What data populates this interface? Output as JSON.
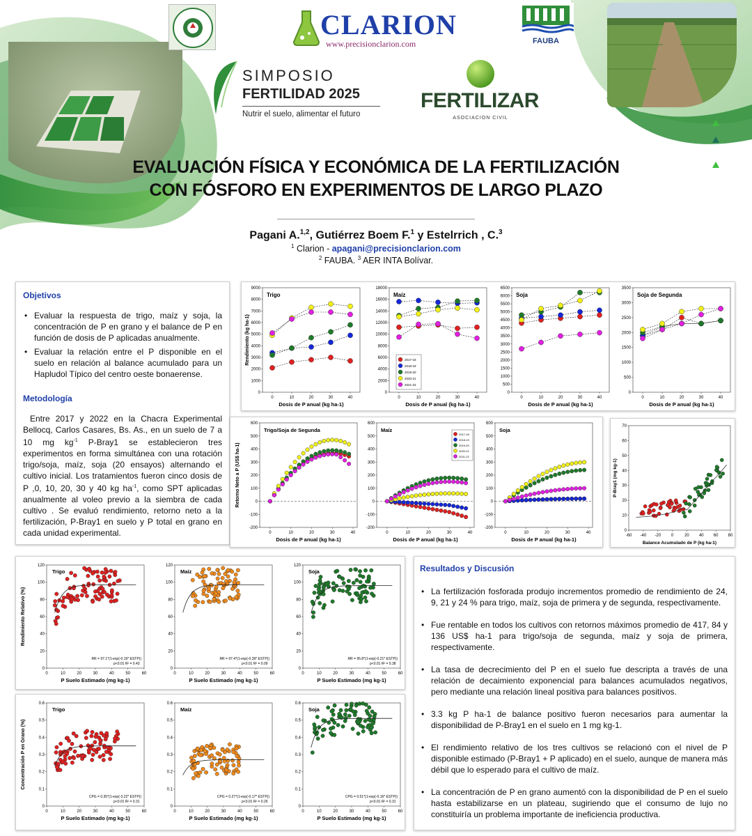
{
  "header": {
    "chacra_logo_text": "CHACRA EXPERIMENTAL BELLOCQ",
    "clarion_name": "CLARION",
    "clarion_url": "www.precisionclarion.com",
    "fauba_label": "FAUBA",
    "simposio_line1": "SIMPOSIO",
    "simposio_line2": "FERTILIDAD 2025",
    "simposio_tagline": "Nutrir el suelo, alimentar el futuro",
    "fertilizar_name": "FERTILIZAR",
    "fertilizar_sub": "ASOCIACION CIVIL"
  },
  "title": {
    "line1": "EVALUACIÓN FÍSICA Y ECONÓMICA DE LA FERTILIZACIÓN",
    "line2": "CON FÓSFORO EN EXPERIMENTOS DE LARGO PLAZO"
  },
  "authors": {
    "a1": "Pagani A.",
    "a1_sup": "1,2",
    "a2": ", Gutiérrez Boem F.",
    "a2_sup": "1",
    "a3": " y Estelrrich , C.",
    "a3_sup": "3",
    "aff1_sup": "1",
    "aff1": " Clarion - ",
    "aff1_email": "apagani@precisionclarion.com",
    "aff2_sup": "2",
    "aff2": " FAUBA. ",
    "aff3_sup": "3",
    "aff3": " AER INTA Bolívar."
  },
  "objetivos": {
    "heading": "Objetivos",
    "items": [
      "Evaluar la respuesta de trigo, maíz y soja, la concentración de P en grano y el balance de P en función de dosis de P aplicadas anualmente.",
      "Evaluar la relación entre el P disponible en el suelo en relación al balance acumulado para un Hapludol Típico del centro oeste bonaerense."
    ]
  },
  "metodologia": {
    "heading": "Metodología",
    "p1": "Entre 2017 y 2022 en la Chacra Experimental Bellocq, Carlos Casares, Bs. As., en un suelo de 7 a 10 mg kg",
    "p1_sup": "-1",
    "p2": " P-Bray1 se establecieron tres experimentos en forma simultánea con una rotación trigo/soja, maíz, soja (20 ensayos) alternando el cultivo inicial. Los tratamientos fueron cinco dosis de P ,0, 10, 20, 30 y 40 kg ha",
    "p2_sup": "-1",
    "p3": ", como SPT aplicadas anualmente al voleo previo a la siembra de cada cultivo . Se evaluó rendimiento, retorno neto a la fertilización, P-Bray1 en suelo y P total en grano en cada unidad experimental."
  },
  "resultados": {
    "heading": "Resultados y Discusión",
    "items": [
      "La fertilización fosforada produjo incrementos promedio de rendimiento de 24, 9, 21 y 24 % para trigo, maíz, soja de primera y de segunda, respectivamente.",
      "Fue rentable en todos los cultivos con retornos máximos promedio de 417, 84 y 136 US$ ha-1 para trigo/soja de segunda, maíz y soja de primera, respectivamente.",
      "La tasa de decrecimiento del P en el suelo fue descripta a través de una relación de decaimiento exponencial para balances acumulados negativos, pero mediante una relación lineal positiva para balances positivos.",
      "3.3 kg P ha-1 de balance positivo fueron necesarios para aumentar la disponibilidad de P-Bray1 en el suelo en 1 mg kg-1.",
      "El rendimiento relativo de los tres cultivos se relacionó con el nivel de P disponible estimado (P-Bray1 + P aplicado) en el suelo, aunque de manera más débil que lo esperado para el cultivo de maíz.",
      "La concentración de P en grano aumentó con la disponibilidad de P en el suelo hasta estabilizarse en un plateau, sugiriendo que el consumo de lujo no constituiría un problema importante de ineficiencia productiva."
    ]
  },
  "colors": {
    "title_blue": "#1f3fa8",
    "green_dark": "#1e7a3c",
    "series": [
      "#e02020",
      "#1428d8",
      "#1e7a2a",
      "#f0f018",
      "#e020e0"
    ],
    "orange": "#f08a1c"
  },
  "chart_data": [
    {
      "id": "yield",
      "type": "scatter",
      "xlabel": "Dosis de P anual (kg ha-1)",
      "ylabel": "Rendimiento (kg ha-1)",
      "x": [
        0,
        10,
        20,
        30,
        40
      ],
      "legend": [
        "2017-18",
        "2018-19",
        "2019-20",
        "2020-21",
        "2021-22"
      ],
      "panels": [
        {
          "title": "Trigo",
          "ylim": [
            0,
            9000
          ],
          "yticks": [
            0,
            1000,
            2000,
            3000,
            4000,
            5000,
            6000,
            7000,
            8000,
            9000
          ],
          "series": [
            [
              2100,
              2600,
              2800,
              3000,
              2700
            ],
            [
              3400,
              3800,
              3900,
              4300,
              4900
            ],
            [
              3200,
              3800,
              4700,
              5200,
              5800
            ],
            [
              4900,
              6400,
              7300,
              7600,
              7400
            ],
            [
              5100,
              6300,
              6900,
              6900,
              6700
            ]
          ]
        },
        {
          "title": "Maíz",
          "ylim": [
            0,
            18000
          ],
          "yticks": [
            0,
            2000,
            4000,
            6000,
            8000,
            10000,
            12000,
            14000,
            16000,
            18000
          ],
          "series": [
            [
              11200,
              11400,
              11600,
              11000,
              11200
            ],
            [
              15600,
              15800,
              15500,
              15300,
              15400
            ],
            [
              13200,
              14400,
              14600,
              15700,
              15800
            ],
            [
              13000,
              13500,
              14200,
              14500,
              14200
            ],
            [
              9500,
              11700,
              11800,
              10000,
              9300
            ]
          ]
        },
        {
          "title": "Soja",
          "ylim": [
            0,
            6500
          ],
          "yticks": [
            0,
            500,
            1000,
            1500,
            2000,
            2500,
            3000,
            3500,
            4000,
            4500,
            5000,
            5500,
            6000,
            6500
          ],
          "series": [
            [
              4300,
              4500,
              4600,
              4700,
              4800
            ],
            [
              4600,
              4700,
              4800,
              5000,
              5100
            ],
            [
              4800,
              5000,
              5300,
              6200,
              6200
            ],
            [
              4500,
              5200,
              5400,
              5700,
              6300
            ],
            [
              2700,
              3100,
              3500,
              3600,
              3700
            ]
          ]
        },
        {
          "title": "Soja de Segunda",
          "ylim": [
            0,
            3500
          ],
          "yticks": [
            0,
            500,
            1000,
            1500,
            2000,
            2500,
            3000,
            3500
          ],
          "series": [
            [
              1900,
              2100,
              2500,
              2300,
              2400
            ],
            [
              1900,
              2200,
              2300,
              2300,
              2400
            ],
            [
              2000,
              2200,
              2300,
              2300,
              2400
            ],
            [
              2100,
              2300,
              2700,
              2800,
              2800
            ],
            [
              1800,
              2100,
              2300,
              2600,
              2800
            ]
          ]
        }
      ]
    },
    {
      "id": "return",
      "type": "scatter",
      "xlabel": "Dosis de P anual (kg ha-1)",
      "ylabel": "Retorno Neto a P (US$ ha-1)",
      "xlim": [
        0,
        40
      ],
      "ylim": [
        -200,
        600
      ],
      "yticks": [
        -200,
        -100,
        0,
        100,
        200,
        300,
        400,
        500,
        600
      ],
      "legend": [
        "2017-18",
        "2018-19",
        "2019-20",
        "2020-21",
        "2021-22"
      ],
      "panels": [
        {
          "title": "Trigo/Soja de Segunda",
          "peaks": [
            [
              0,
              0,
              0,
              0,
              0
            ]
          ],
          "peak_values": [
            370,
            0,
            390,
            470,
            360
          ]
        },
        {
          "title": "Maíz",
          "peak_values": [
            -110,
            -40,
            180,
            60,
            150
          ]
        },
        {
          "title": "Soja",
          "peak_values": [
            20,
            20,
            240,
            300,
            100
          ]
        }
      ]
    },
    {
      "id": "balance",
      "type": "scatter",
      "title": "",
      "xlabel": "Balance Acumulado de P (kg ha-1)",
      "ylabel": "P-Bray1 (mg kg-1)",
      "xlim": [
        -60,
        80
      ],
      "ylim": [
        0,
        70
      ],
      "xticks": [
        -60,
        -40,
        -20,
        0,
        20,
        40,
        60,
        80
      ],
      "yticks": [
        0,
        10,
        20,
        30,
        40,
        50,
        60,
        70
      ]
    },
    {
      "id": "relative_yield",
      "type": "scatter",
      "xlabel": "P Suelo Estimado (mg kg-1)",
      "ylabel": "Rendimiento Relativo (%)",
      "xlim": [
        0,
        60
      ],
      "ylim": [
        0,
        120
      ],
      "xticks": [
        0,
        10,
        20,
        30,
        40,
        50,
        60
      ],
      "yticks": [
        0,
        20,
        40,
        60,
        80,
        100,
        120
      ],
      "panels": [
        {
          "title": "Trigo",
          "color": "#e02020",
          "plateau": 97,
          "equation": "RR = 97.1*(1-exp(-0.19* ESTP))",
          "stats": "p<0.01 R² = 0.43"
        },
        {
          "title": "Maíz",
          "color": "#f08a1c",
          "plateau": 97,
          "equation": "RR = 97.4*(1-exp(-0.39* ESTP))",
          "stats": "p<0.01 R² = 0.09"
        },
        {
          "title": "Soja",
          "color": "#1e7a2a",
          "plateau": 96,
          "equation": "RR = 95.8*(1-exp(-0.21* ESTP))",
          "stats": "p<0.01 R² = 0.38"
        }
      ]
    },
    {
      "id": "grain_p",
      "type": "scatter",
      "xlabel": "P Suelo Estimado (mg kg-1)",
      "ylabel": "Concentración P en Grano (%)",
      "xlim": [
        0,
        60
      ],
      "ylim": [
        0,
        0.6
      ],
      "xticks": [
        0,
        10,
        20,
        30,
        40,
        50,
        60
      ],
      "yticks": [
        0,
        0.1,
        0.2,
        0.3,
        0.4,
        0.5,
        0.6
      ],
      "panels": [
        {
          "title": "Trigo",
          "color": "#e02020",
          "plateau": 0.35,
          "equation": "CPG = 0.35*(1-exp(-3.22* ESTP))",
          "stats": "p<0.01 R² = 0.31"
        },
        {
          "title": "Maíz",
          "color": "#f08a1c",
          "plateau": 0.27,
          "equation": "CPG = 0.27*(1-exp(-0.17* ESTP))",
          "stats": "p<0.01 R² = 0.26"
        },
        {
          "title": "Soja",
          "color": "#1e7a2a",
          "plateau": 0.51,
          "equation": "CPG = 0.51*(1-exp(-0.16* ESTP))",
          "stats": "p<0.01 R² = 0.31"
        }
      ]
    }
  ]
}
